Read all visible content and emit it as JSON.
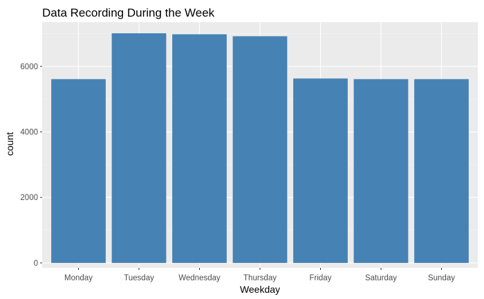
{
  "chart_data": {
    "type": "bar",
    "title": "Data Recording During the Week",
    "xlabel": "Weekday",
    "ylabel": "count",
    "categories": [
      "Monday",
      "Tuesday",
      "Wednesday",
      "Thursday",
      "Friday",
      "Saturday",
      "Sunday"
    ],
    "values": [
      5610,
      7010,
      6980,
      6920,
      5630,
      5610,
      5610
    ],
    "ylim": [
      -150,
      7350
    ],
    "yticks": [
      0,
      2000,
      4000,
      6000
    ],
    "ytick_labels": [
      "0",
      "2000",
      "4000",
      "6000"
    ],
    "grid": true,
    "legend": "none",
    "colors": {
      "bar": "#4682B4",
      "panel": "#EBEBEB",
      "grid_major": "#FFFFFF",
      "grid_minor": "#F5F5F5",
      "tick": "#333333"
    }
  }
}
